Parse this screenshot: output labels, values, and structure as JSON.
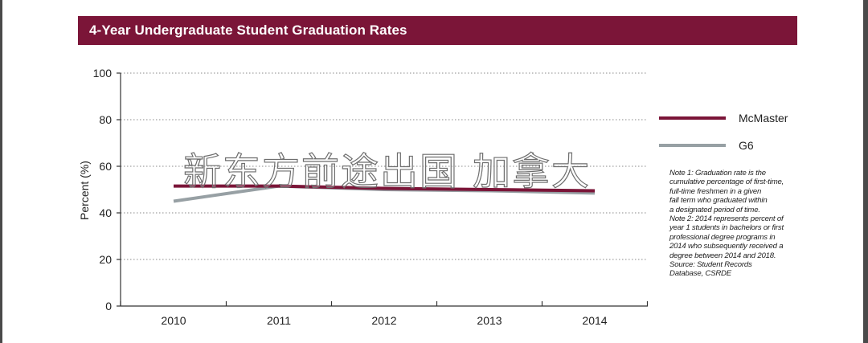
{
  "chart_data": {
    "type": "line",
    "title": "4-Year Undergraduate Student Graduation Rates",
    "ylabel": "Percent (%)",
    "xlabel": "",
    "categories": [
      "2010",
      "2011",
      "2012",
      "2013",
      "2014"
    ],
    "ylim": [
      0,
      100
    ],
    "yticks": [
      0,
      20,
      40,
      60,
      80,
      100
    ],
    "grid": true,
    "legend_position": "right",
    "series": [
      {
        "name": "McMaster",
        "color": "#7b1538",
        "values": [
          51.5,
          51.5,
          50.5,
          50,
          49.5
        ]
      },
      {
        "name": "G6",
        "color": "#97a0a4",
        "values": [
          45,
          51.5,
          50,
          49.5,
          48.5
        ]
      }
    ]
  },
  "watermark_text": "新东方前途出国 加拿大",
  "notes": [
    "Note 1: Graduation rate is the",
    "cumulative percentage of first-time,",
    "full-time freshmen in a given",
    "fall term who graduated within",
    "a designated period of time.",
    "Note 2: 2014 represents percent of",
    "year 1 students in bachelors or first",
    "professional degree programs in",
    "2014 who subsequently received a",
    "degree between 2014 and 2018.",
    "Source: Student Records",
    "Database, CSRDE"
  ]
}
